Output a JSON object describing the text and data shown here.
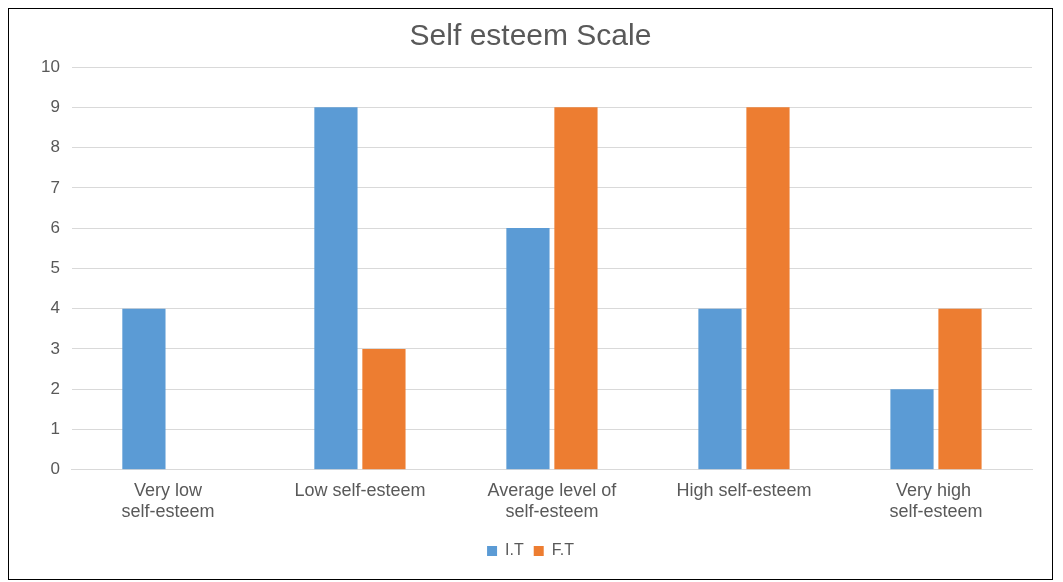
{
  "chart_data": {
    "type": "bar",
    "title": "Self esteem Scale",
    "categories": [
      "Very low self-esteem",
      "Low self-esteem",
      "Average level of self-esteem",
      "High self-esteem",
      "Very high  self-esteem"
    ],
    "series": [
      {
        "name": "I.T",
        "color": "#5b9bd5",
        "values": [
          4,
          9,
          6,
          4,
          2
        ]
      },
      {
        "name": "F.T",
        "color": "#ed7d31",
        "values": [
          0,
          3,
          9,
          9,
          4
        ]
      }
    ],
    "ylim": [
      0,
      10
    ],
    "yticks": [
      0,
      1,
      2,
      3,
      4,
      5,
      6,
      7,
      8,
      9,
      10
    ],
    "grid": "y",
    "legend": "bottom"
  }
}
